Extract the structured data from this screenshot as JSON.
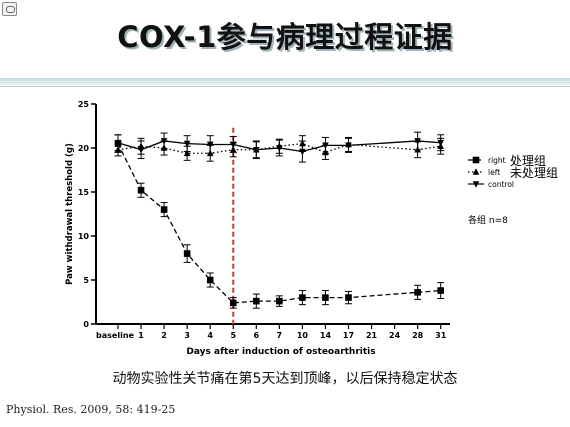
{
  "slide": {
    "title": "COX-1参与病理过程证据",
    "caption": "动物实验性关节痛在第5天达到顶峰，以后保持稳定状态",
    "source": "Physiol. Res. 2009, 58: 419-25"
  },
  "chart_data": {
    "type": "line",
    "ylabel": "Paw withdrawal threshold (g)",
    "xlabel": "Days after induction of osteoarthritis",
    "categories": [
      "baseline",
      "1",
      "2",
      "3",
      "4",
      "5",
      "6",
      "7",
      "10",
      "14",
      "17",
      "21",
      "24",
      "28",
      "31"
    ],
    "ylim": [
      0,
      25
    ],
    "yticks": [
      0,
      5,
      10,
      15,
      20,
      25
    ],
    "series": [
      {
        "name": "right",
        "annotation": "处理组",
        "marker": "square",
        "dash": "dashed",
        "values": [
          20.5,
          15.2,
          13.0,
          8.0,
          5.0,
          2.4,
          2.6,
          2.6,
          3.0,
          3.0,
          3.0,
          null,
          null,
          3.6,
          3.8
        ],
        "errors": [
          1.0,
          0.8,
          0.8,
          1.0,
          0.8,
          0.6,
          0.8,
          0.6,
          0.8,
          0.8,
          0.7,
          null,
          null,
          0.8,
          0.9
        ]
      },
      {
        "name": "left",
        "annotation": "未处理组",
        "marker": "triangle-up",
        "dash": "dotted",
        "values": [
          19.8,
          20.2,
          20.0,
          19.4,
          19.4,
          19.8,
          19.8,
          20.2,
          20.5,
          19.5,
          20.4,
          null,
          null,
          19.8,
          20.2
        ],
        "errors": [
          0.7,
          0.9,
          0.8,
          0.8,
          0.9,
          0.8,
          0.9,
          0.8,
          0.9,
          0.8,
          0.8,
          null,
          null,
          0.9,
          0.9
        ]
      },
      {
        "name": "control",
        "marker": "triangle-down",
        "dash": "solid",
        "values": [
          20.6,
          19.8,
          20.8,
          20.5,
          20.4,
          20.4,
          19.8,
          20.0,
          19.6,
          20.3,
          20.3,
          null,
          null,
          20.8,
          20.6
        ],
        "errors": [
          0.9,
          1.0,
          0.9,
          0.9,
          1.0,
          0.9,
          1.0,
          0.9,
          1.2,
          0.9,
          0.8,
          null,
          null,
          1.0,
          0.9
        ]
      }
    ],
    "reference_line": {
      "category": "5",
      "color": "#d63a30"
    },
    "note": "各组 n=8",
    "legend_position": "right"
  }
}
